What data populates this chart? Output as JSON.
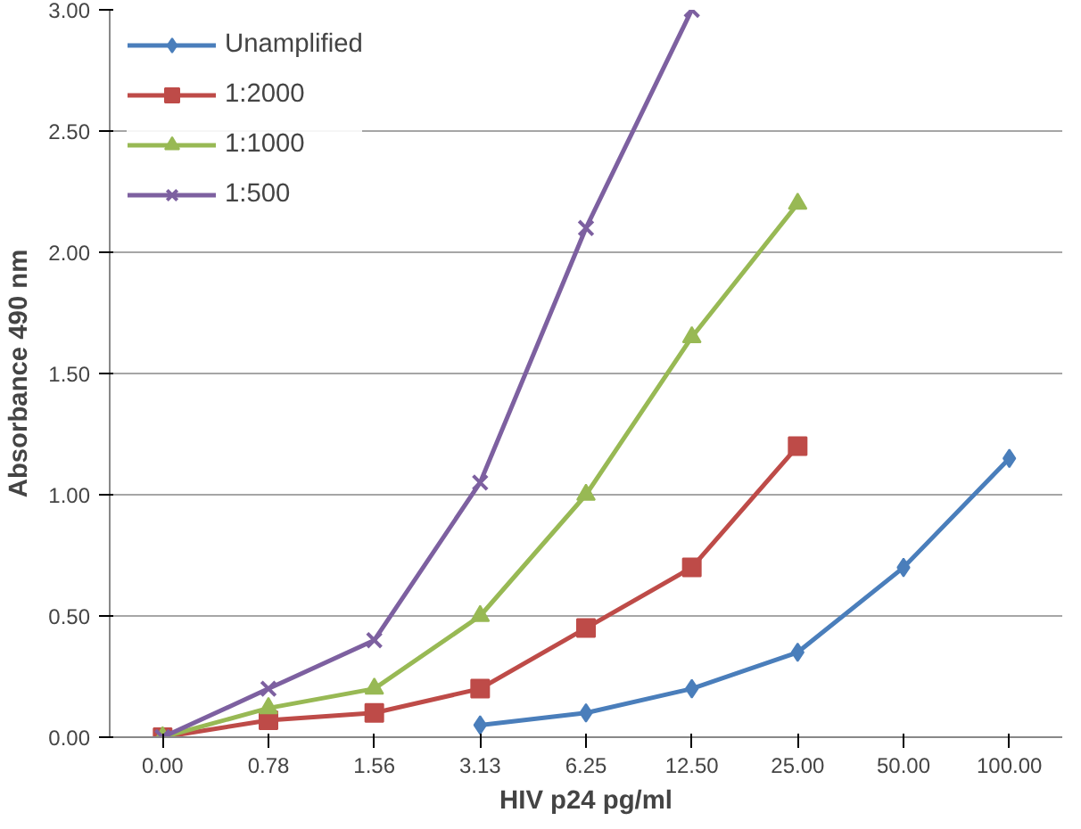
{
  "chart_data": {
    "type": "line",
    "xlabel": "HIV p24 pg/ml",
    "ylabel": "Absorbance 490 nm",
    "categories": [
      "0.00",
      "0.78",
      "1.56",
      "3.13",
      "6.25",
      "12.50",
      "25.00",
      "50.00",
      "100.00"
    ],
    "ylim": [
      0,
      3
    ],
    "yticks": [
      {
        "value": 0,
        "label": "0.00"
      },
      {
        "value": 0.5,
        "label": "0.50"
      },
      {
        "value": 1,
        "label": "1.00"
      },
      {
        "value": 1.5,
        "label": "1.50"
      },
      {
        "value": 2,
        "label": "2.00"
      },
      {
        "value": 2.5,
        "label": "2.50"
      },
      {
        "value": 3,
        "label": "3.00"
      }
    ],
    "grid": "y",
    "legend": "top left",
    "line_style": "solid",
    "series": [
      {
        "name": "Unamplified",
        "color": "#4a7ebb",
        "marker": "diamond",
        "values": [
          null,
          null,
          null,
          0.05,
          0.1,
          0.2,
          0.35,
          0.7,
          1.15
        ]
      },
      {
        "name": "1:2000",
        "color": "#be4b48",
        "marker": "square",
        "values": [
          0,
          0.07,
          0.1,
          0.2,
          0.45,
          0.7,
          1.2,
          null,
          null
        ]
      },
      {
        "name": "1:1000",
        "color": "#98b954",
        "marker": "triangle",
        "values": [
          0,
          0.12,
          0.2,
          0.5,
          1.0,
          1.65,
          2.2,
          null,
          null
        ]
      },
      {
        "name": "1:500",
        "color": "#7d60a0",
        "marker": "cross",
        "values": [
          0,
          0.2,
          0.4,
          1.05,
          2.1,
          3.0,
          null,
          null,
          null
        ]
      }
    ]
  }
}
